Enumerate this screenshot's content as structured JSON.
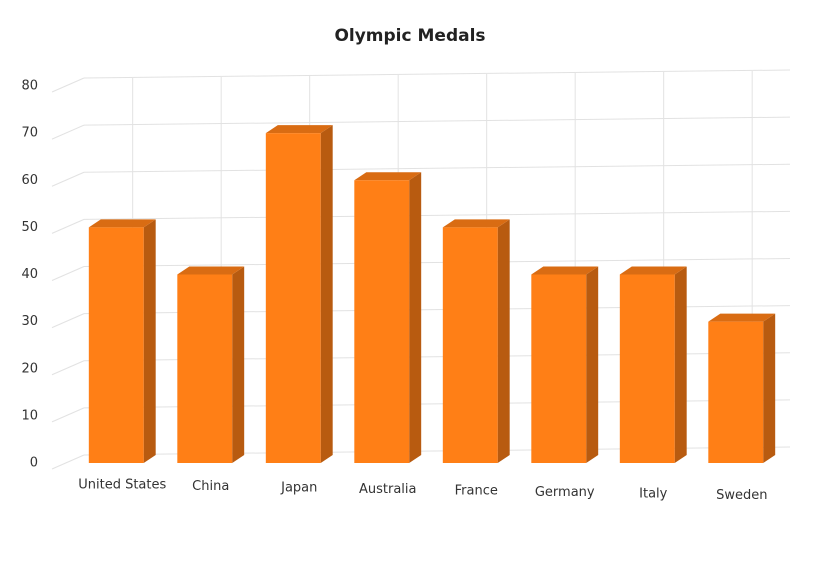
{
  "chart_data": {
    "type": "bar3d",
    "title": "Olympic Medals",
    "categories": [
      "United States",
      "China",
      "Japan",
      "Australia",
      "France",
      "Germany",
      "Italy",
      "Sweden"
    ],
    "values": [
      50,
      40,
      70,
      60,
      50,
      40,
      40,
      30
    ],
    "color": "#ff7f16",
    "ylim": [
      0,
      80
    ],
    "yticks": [
      0,
      10,
      20,
      30,
      40,
      50,
      60,
      70,
      80
    ],
    "grid": true
  }
}
